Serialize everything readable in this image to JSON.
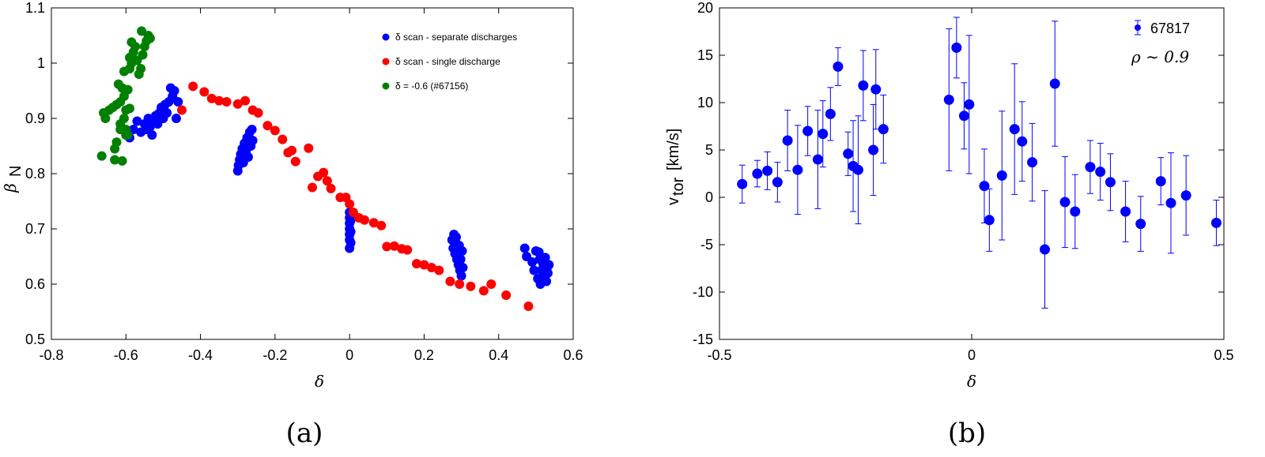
{
  "colors": {
    "blue": "#0000ff",
    "red": "#ff0000",
    "green": "#008000",
    "axis": "#000000"
  },
  "captions": [
    "(a)",
    "(b)"
  ],
  "chart_data": [
    {
      "type": "scatter",
      "title": "",
      "xlabel": "δ",
      "ylabel": "β",
      "ylabel_sub": "N",
      "xlim": [
        -0.8,
        0.6
      ],
      "ylim": [
        0.5,
        1.1
      ],
      "xticks": [
        -0.8,
        -0.6,
        -0.4,
        -0.2,
        0,
        0.2,
        0.4,
        0.6
      ],
      "yticks": [
        0.5,
        0.6,
        0.7,
        0.8,
        0.9,
        1,
        1.1
      ],
      "xtick_labels": [
        "-0.8",
        "-0.6",
        "-0.4",
        "-0.2",
        "0",
        "0.2",
        "0.4",
        "0.6"
      ],
      "ytick_labels": [
        "0.5",
        "0.6",
        "0.7",
        "0.8",
        "0.9",
        "1",
        "1.1"
      ],
      "legend_position": "top-right",
      "series": [
        {
          "name": "δ scan - separate discharges",
          "color": "#0000ff",
          "points": [
            [
              -0.59,
              0.865
            ],
            [
              -0.58,
              0.88
            ],
            [
              -0.57,
              0.895
            ],
            [
              -0.56,
              0.875
            ],
            [
              -0.55,
              0.89
            ],
            [
              -0.545,
              0.88
            ],
            [
              -0.54,
              0.9
            ],
            [
              -0.535,
              0.885
            ],
            [
              -0.53,
              0.87
            ],
            [
              -0.525,
              0.895
            ],
            [
              -0.52,
              0.905
            ],
            [
              -0.515,
              0.89
            ],
            [
              -0.51,
              0.91
            ],
            [
              -0.505,
              0.92
            ],
            [
              -0.5,
              0.9
            ],
            [
              -0.495,
              0.925
            ],
            [
              -0.49,
              0.91
            ],
            [
              -0.485,
              0.93
            ],
            [
              -0.48,
              0.955
            ],
            [
              -0.475,
              0.94
            ],
            [
              -0.47,
              0.95
            ],
            [
              -0.465,
              0.9
            ],
            [
              -0.46,
              0.93
            ],
            [
              -0.3,
              0.805
            ],
            [
              -0.298,
              0.815
            ],
            [
              -0.295,
              0.825
            ],
            [
              -0.292,
              0.835
            ],
            [
              -0.288,
              0.845
            ],
            [
              -0.285,
              0.82
            ],
            [
              -0.282,
              0.855
            ],
            [
              -0.278,
              0.84
            ],
            [
              -0.275,
              0.865
            ],
            [
              -0.272,
              0.83
            ],
            [
              -0.268,
              0.875
            ],
            [
              -0.265,
              0.85
            ],
            [
              -0.262,
              0.88
            ],
            [
              -0.26,
              0.86
            ],
            [
              0,
              0.665
            ],
            [
              0,
              0.68
            ],
            [
              0,
              0.69
            ],
            [
              0,
              0.7
            ],
            [
              0,
              0.71
            ],
            [
              0,
              0.72
            ],
            [
              0,
              0.73
            ],
            [
              0.003,
              0.675
            ],
            [
              0.003,
              0.695
            ],
            [
              0.003,
              0.715
            ],
            [
              0.003,
              0.728
            ],
            [
              0.275,
              0.68
            ],
            [
              0.278,
              0.665
            ],
            [
              0.28,
              0.69
            ],
            [
              0.283,
              0.655
            ],
            [
              0.285,
              0.675
            ],
            [
              0.288,
              0.645
            ],
            [
              0.29,
              0.665
            ],
            [
              0.292,
              0.635
            ],
            [
              0.294,
              0.655
            ],
            [
              0.296,
              0.625
            ],
            [
              0.298,
              0.645
            ],
            [
              0.3,
              0.615
            ],
            [
              0.302,
              0.66
            ],
            [
              0.304,
              0.63
            ],
            [
              0.286,
              0.685
            ],
            [
              0.294,
              0.67
            ],
            [
              0.47,
              0.665
            ],
            [
              0.475,
              0.65
            ],
            [
              0.49,
              0.64
            ],
            [
              0.495,
              0.625
            ],
            [
              0.5,
              0.66
            ],
            [
              0.505,
              0.61
            ],
            [
              0.51,
              0.645
            ],
            [
              0.512,
              0.6
            ],
            [
              0.515,
              0.625
            ],
            [
              0.52,
              0.635
            ],
            [
              0.522,
              0.615
            ],
            [
              0.525,
              0.648
            ],
            [
              0.528,
              0.605
            ],
            [
              0.53,
              0.63
            ],
            [
              0.532,
              0.62
            ],
            [
              0.535,
              0.635
            ],
            [
              0.508,
              0.658
            ],
            [
              0.518,
              0.64
            ]
          ]
        },
        {
          "name": "δ scan - single discharge",
          "color": "#ff0000",
          "points": [
            [
              -0.45,
              0.915
            ],
            [
              -0.42,
              0.958
            ],
            [
              -0.39,
              0.948
            ],
            [
              -0.37,
              0.936
            ],
            [
              -0.35,
              0.932
            ],
            [
              -0.33,
              0.93
            ],
            [
              -0.3,
              0.926
            ],
            [
              -0.28,
              0.932
            ],
            [
              -0.26,
              0.915
            ],
            [
              -0.245,
              0.91
            ],
            [
              -0.22,
              0.887
            ],
            [
              -0.2,
              0.878
            ],
            [
              -0.18,
              0.862
            ],
            [
              -0.165,
              0.838
            ],
            [
              -0.155,
              0.842
            ],
            [
              -0.145,
              0.822
            ],
            [
              -0.11,
              0.846
            ],
            [
              -0.1,
              0.775
            ],
            [
              -0.085,
              0.795
            ],
            [
              -0.07,
              0.802
            ],
            [
              -0.06,
              0.787
            ],
            [
              -0.05,
              0.773
            ],
            [
              -0.025,
              0.757
            ],
            [
              -0.01,
              0.757
            ],
            [
              0,
              0.745
            ],
            [
              0.01,
              0.73
            ],
            [
              0.025,
              0.72
            ],
            [
              0.04,
              0.716
            ],
            [
              0.065,
              0.711
            ],
            [
              0.085,
              0.706
            ],
            [
              0.1,
              0.668
            ],
            [
              0.12,
              0.669
            ],
            [
              0.14,
              0.664
            ],
            [
              0.155,
              0.662
            ],
            [
              0.18,
              0.637
            ],
            [
              0.2,
              0.635
            ],
            [
              0.22,
              0.63
            ],
            [
              0.24,
              0.625
            ],
            [
              0.27,
              0.605
            ],
            [
              0.295,
              0.6
            ],
            [
              0.325,
              0.596
            ],
            [
              0.36,
              0.588
            ],
            [
              0.38,
              0.6
            ],
            [
              0.42,
              0.58
            ],
            [
              0.48,
              0.56
            ]
          ]
        },
        {
          "name": "δ = -0.6 (#67156)",
          "color": "#008000",
          "points": [
            [
              -0.665,
              0.832
            ],
            [
              -0.63,
              0.825
            ],
            [
              -0.61,
              0.823
            ],
            [
              -0.63,
              0.845
            ],
            [
              -0.625,
              0.857
            ],
            [
              -0.655,
              0.9
            ],
            [
              -0.66,
              0.91
            ],
            [
              -0.645,
              0.915
            ],
            [
              -0.635,
              0.92
            ],
            [
              -0.625,
              0.925
            ],
            [
              -0.615,
              0.89
            ],
            [
              -0.605,
              0.9
            ],
            [
              -0.6,
              0.88
            ],
            [
              -0.595,
              0.87
            ],
            [
              -0.6,
              0.915
            ],
            [
              -0.59,
              0.918
            ],
            [
              -0.615,
              0.93
            ],
            [
              -0.605,
              0.94
            ],
            [
              -0.62,
              0.962
            ],
            [
              -0.61,
              0.955
            ],
            [
              -0.595,
              0.952
            ],
            [
              -0.605,
              0.985
            ],
            [
              -0.59,
              0.99
            ],
            [
              -0.585,
              1.0
            ],
            [
              -0.59,
              1.01
            ],
            [
              -0.58,
              1.02
            ],
            [
              -0.575,
              1.03
            ],
            [
              -0.585,
              1.038
            ],
            [
              -0.565,
              0.98
            ],
            [
              -0.57,
              1.005
            ],
            [
              -0.56,
              0.99
            ],
            [
              -0.555,
              1.015
            ],
            [
              -0.55,
              1.03
            ],
            [
              -0.545,
              1.04
            ],
            [
              -0.54,
              1.05
            ],
            [
              -0.535,
              1.045
            ],
            [
              -0.558,
              1.058
            ],
            [
              -0.6,
              0.87
            ],
            [
              -0.615,
              0.88
            ]
          ]
        }
      ]
    },
    {
      "type": "scatter",
      "title": "",
      "xlabel": "δ",
      "ylabel": "v",
      "ylabel_sub": "tor",
      "ylabel_unit": "[km/s]",
      "xlim": [
        -0.5,
        0.5
      ],
      "ylim": [
        -15,
        20
      ],
      "xticks": [
        -0.5,
        0,
        0.5
      ],
      "yticks": [
        -15,
        -10,
        -5,
        0,
        5,
        10,
        15,
        20
      ],
      "xtick_labels": [
        "-0.5",
        "0",
        "0.5"
      ],
      "ytick_labels": [
        "-15",
        "-10",
        "-5",
        "0",
        "5",
        "10",
        "15",
        "20"
      ],
      "legend_position": "top-right",
      "legend_label": "67817",
      "annotation": "ρ ∼ 0.9",
      "series": [
        {
          "name": "67817",
          "color": "#0000ff",
          "points": [
            [
              -0.455,
              1.4,
              2.0
            ],
            [
              -0.425,
              2.5,
              1.4
            ],
            [
              -0.405,
              2.8,
              2.0
            ],
            [
              -0.385,
              1.6,
              2.1
            ],
            [
              -0.365,
              6.0,
              3.2
            ],
            [
              -0.345,
              2.9,
              4.7
            ],
            [
              -0.325,
              7.0,
              2.6
            ],
            [
              -0.305,
              4.0,
              5.2
            ],
            [
              -0.295,
              6.7,
              3.5
            ],
            [
              -0.28,
              8.8,
              2.8
            ],
            [
              -0.265,
              13.8,
              2.0
            ],
            [
              -0.245,
              4.6,
              2.3
            ],
            [
              -0.235,
              3.3,
              4.8
            ],
            [
              -0.225,
              2.9,
              5.7
            ],
            [
              -0.215,
              11.8,
              3.7
            ],
            [
              -0.195,
              5.0,
              4.8
            ],
            [
              -0.19,
              11.4,
              4.2
            ],
            [
              -0.175,
              7.2,
              3.6
            ],
            [
              -0.045,
              10.3,
              7.5
            ],
            [
              -0.03,
              15.8,
              3.2
            ],
            [
              -0.015,
              8.6,
              3.5
            ],
            [
              -0.005,
              9.8,
              7.3
            ],
            [
              0.025,
              1.2,
              3.9
            ],
            [
              0.035,
              -2.4,
              3.3
            ],
            [
              0.06,
              2.3,
              6.8
            ],
            [
              0.085,
              7.2,
              6.9
            ],
            [
              0.1,
              5.9,
              4.2
            ],
            [
              0.12,
              3.7,
              4.1
            ],
            [
              0.145,
              -5.5,
              6.2
            ],
            [
              0.165,
              12.0,
              6.6
            ],
            [
              0.185,
              -0.5,
              4.8
            ],
            [
              0.205,
              -1.5,
              3.9
            ],
            [
              0.235,
              3.2,
              2.8
            ],
            [
              0.255,
              2.7,
              3.0
            ],
            [
              0.275,
              1.6,
              3.0
            ],
            [
              0.305,
              -1.5,
              3.2
            ],
            [
              0.335,
              -2.8,
              2.9
            ],
            [
              0.375,
              1.7,
              2.5
            ],
            [
              0.395,
              -0.6,
              5.3
            ],
            [
              0.425,
              0.2,
              4.2
            ],
            [
              0.485,
              -2.7,
              2.4
            ]
          ]
        }
      ]
    }
  ]
}
